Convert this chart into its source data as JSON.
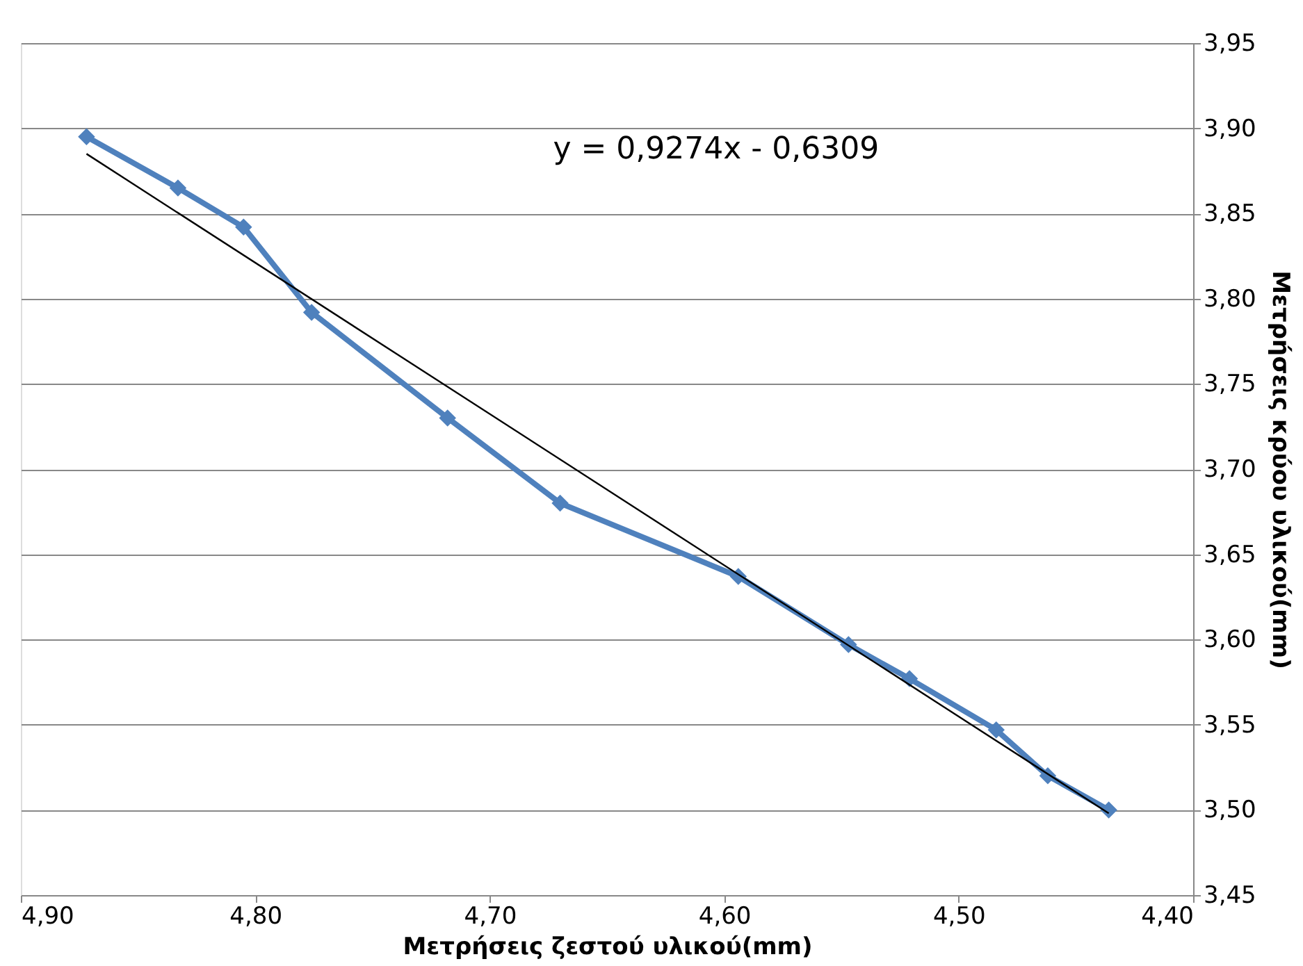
{
  "chart_data": {
    "type": "line",
    "xlabel": "Μετρήσεις ζεστού υλικού(mm)",
    "ylabel": "Μετρήσεις κρύου υλικού(mm)",
    "annotations": [
      "y = 0,9274x - 0,6309"
    ],
    "series": [
      {
        "color": "#4f81bd",
        "marker": "diamond",
        "x": [
          4.872,
          4.833,
          4.805,
          4.776,
          4.718,
          4.67,
          4.594,
          4.547,
          4.521,
          4.484,
          4.462,
          4.436
        ],
        "values": [
          3.895,
          3.865,
          3.842,
          3.792,
          3.73,
          3.68,
          3.637,
          3.597,
          3.577,
          3.547,
          3.52,
          3.5
        ]
      },
      {
        "color": "#000000",
        "marker": "none",
        "x": [
          4.872,
          4.436
        ],
        "values": [
          3.885,
          3.498
        ]
      }
    ],
    "xlim": [
      4.9,
      4.4
    ],
    "xticks": [
      {
        "value": 4.9,
        "label": "4,90"
      },
      {
        "value": 4.8,
        "label": "4,80"
      },
      {
        "value": 4.7,
        "label": "4,70"
      },
      {
        "value": 4.6,
        "label": "4,60"
      },
      {
        "value": 4.5,
        "label": "4,50"
      },
      {
        "value": 4.4,
        "label": "4,40"
      }
    ],
    "ylim": [
      3.45,
      3.95
    ],
    "yticks": [
      {
        "value": 3.45,
        "label": "3,45"
      },
      {
        "value": 3.5,
        "label": "3,50"
      },
      {
        "value": 3.55,
        "label": "3,55"
      },
      {
        "value": 3.6,
        "label": "3,60"
      },
      {
        "value": 3.65,
        "label": "3,65"
      },
      {
        "value": 3.7,
        "label": "3,70"
      },
      {
        "value": 3.75,
        "label": "3,75"
      },
      {
        "value": 3.8,
        "label": "3,80"
      },
      {
        "value": 3.85,
        "label": "3,85"
      },
      {
        "value": 3.9,
        "label": "3,90"
      },
      {
        "value": 3.95,
        "label": "3,95"
      }
    ],
    "grid": "y"
  }
}
